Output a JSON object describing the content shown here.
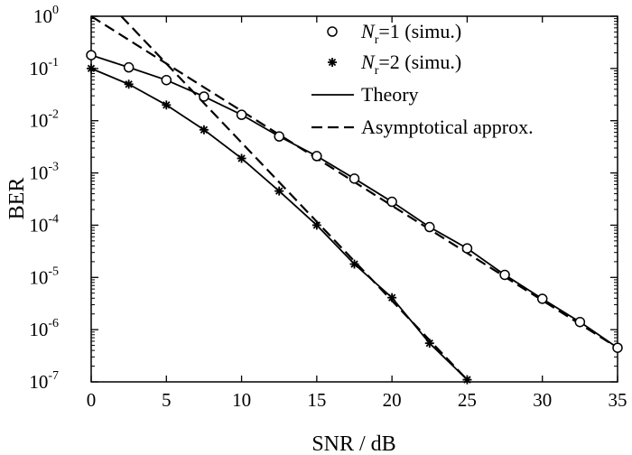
{
  "chart_data": {
    "type": "line",
    "title": "",
    "xlabel": "SNR / dB",
    "ylabel": "BER",
    "xlim": [
      0,
      35
    ],
    "ylim_exponent": [
      -7,
      0
    ],
    "yscale": "log",
    "grid": false,
    "legend_position": "top-right",
    "x_ticks": [
      "0",
      "5",
      "10",
      "15",
      "20",
      "25",
      "30",
      "35"
    ],
    "y_ticks": [
      {
        "base": "10",
        "exp": "0"
      },
      {
        "base": "10",
        "exp": "-1"
      },
      {
        "base": "10",
        "exp": "-2"
      },
      {
        "base": "10",
        "exp": "-3"
      },
      {
        "base": "10",
        "exp": "-4"
      },
      {
        "base": "10",
        "exp": "-5"
      },
      {
        "base": "10",
        "exp": "-6"
      },
      {
        "base": "10",
        "exp": "-7"
      }
    ],
    "legend": [
      {
        "var": "N",
        "sub": "r",
        "text": "=1 (simu.)",
        "marker": "circle"
      },
      {
        "var": "N",
        "sub": "r",
        "text": "=2 (simu.)",
        "marker": "asterisk"
      },
      {
        "text": "Theory",
        "line": "solid"
      },
      {
        "text": "Asymptotical approx.",
        "line": "dashed"
      }
    ],
    "series": [
      {
        "marker": "circle",
        "x": [
          0,
          2.5,
          5,
          7.5,
          10,
          12.5,
          15,
          17.5,
          20,
          22.5,
          25,
          27.5,
          30,
          32.5,
          35
        ],
        "y": [
          0.18,
          0.105,
          0.06,
          0.029,
          0.013,
          0.005,
          0.0021,
          0.00078,
          0.00028,
          9.2e-05,
          3.6e-05,
          1.12e-05,
          3.9e-06,
          1.4e-06,
          4.5e-07
        ]
      },
      {
        "marker": "asterisk",
        "x": [
          0,
          2.5,
          5,
          7.5,
          10,
          12.5,
          15,
          17.5,
          20,
          22.5,
          25
        ],
        "y": [
          0.1,
          0.05,
          0.02,
          0.0067,
          0.0019,
          0.00045,
          0.0001,
          1.8e-05,
          4.1e-06,
          5.5e-07,
          1.1e-07
        ]
      },
      {
        "line": "solid",
        "x": [
          0,
          2.5,
          5,
          7.5,
          10,
          12.5,
          15,
          17.5,
          20,
          22.5,
          25,
          27.5,
          30,
          32.5,
          35
        ],
        "y": [
          0.18,
          0.105,
          0.06,
          0.029,
          0.013,
          0.005,
          0.0021,
          0.00078,
          0.00028,
          9.2e-05,
          3.6e-05,
          1.12e-05,
          3.9e-06,
          1.4e-06,
          4.5e-07
        ]
      },
      {
        "line": "solid",
        "x": [
          0,
          2.5,
          5,
          7.5,
          10,
          12.5,
          15,
          17.5,
          20,
          22.5,
          25
        ],
        "y": [
          0.1,
          0.05,
          0.02,
          0.0067,
          0.0019,
          0.00045,
          0.0001,
          1.8e-05,
          4.1e-06,
          5.5e-07,
          1.1e-07
        ]
      },
      {
        "line": "dashed",
        "x": [
          0,
          35
        ],
        "y": [
          1.0,
          4.5e-07
        ]
      },
      {
        "line": "dashed",
        "x": [
          2,
          25
        ],
        "y": [
          1.0,
          1.1e-07
        ]
      }
    ]
  }
}
